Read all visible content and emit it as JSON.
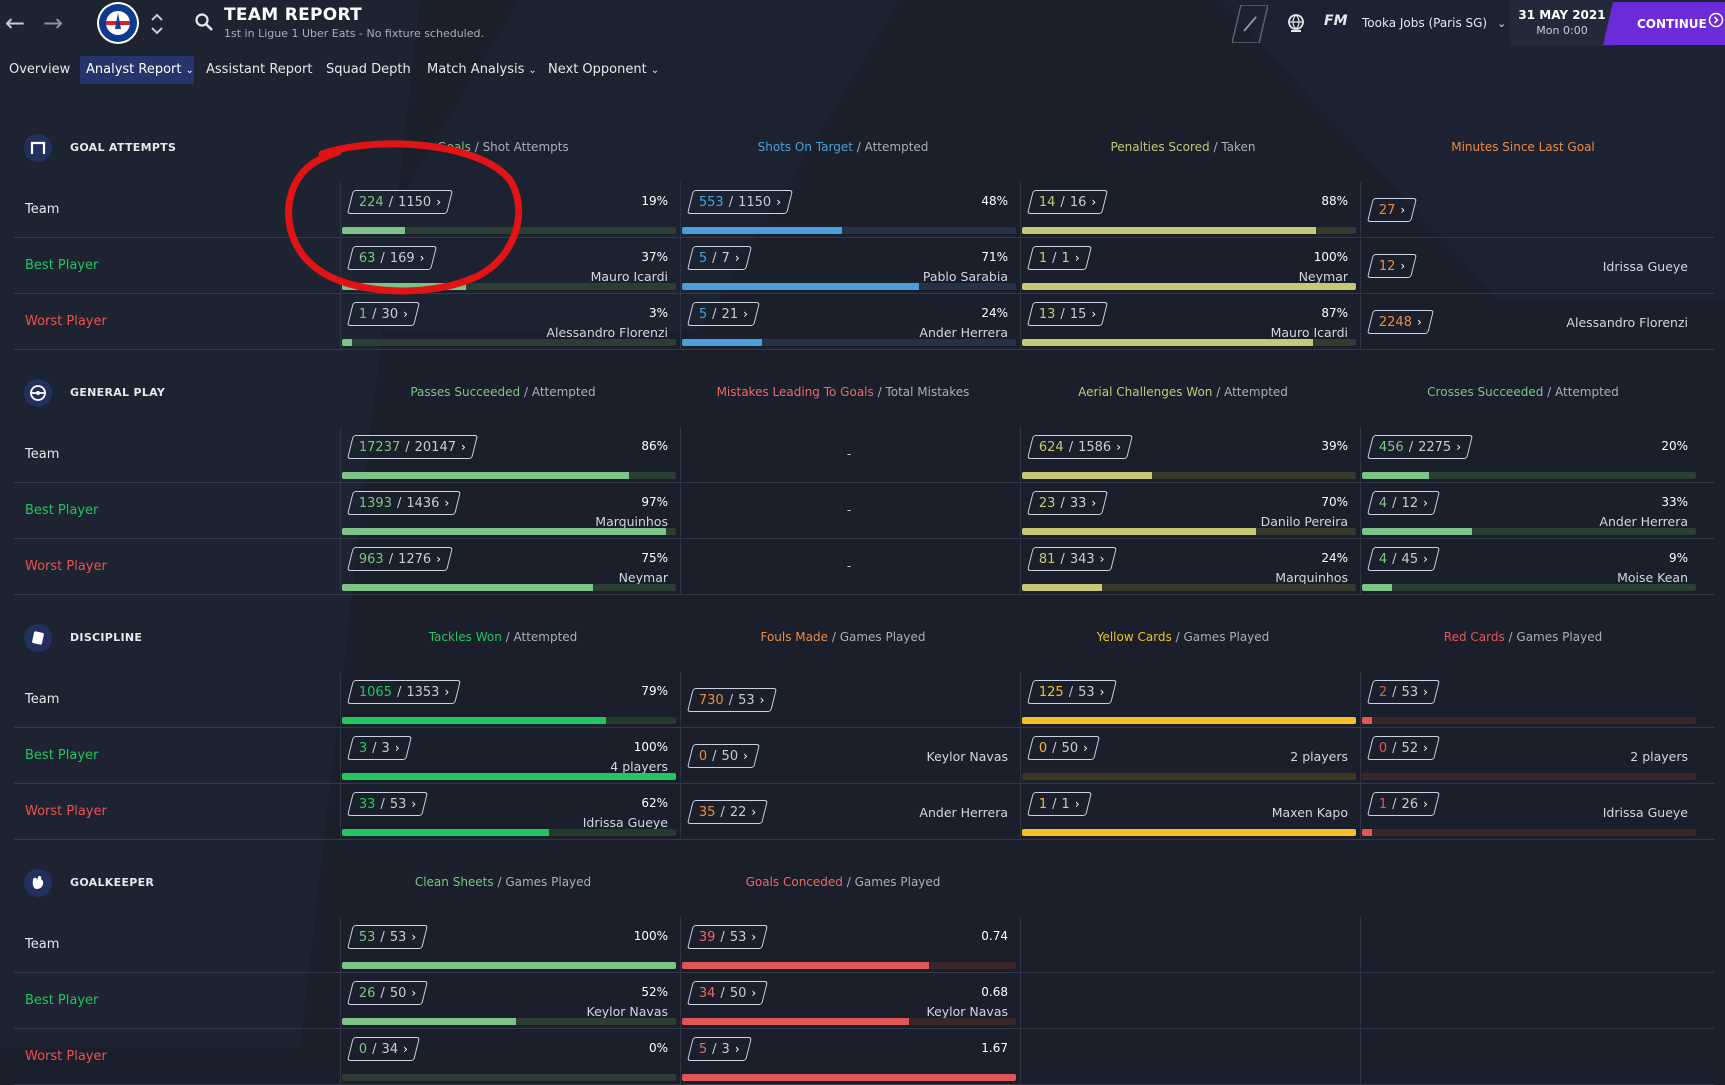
{
  "colors": {
    "green": "#7dc387",
    "blue": "#4a9fd8",
    "olive": "#c6c875",
    "orange": "#e88c46",
    "bright_green": "#22c55e",
    "yellow": "#f6c024",
    "red": "#e05757",
    "text_muted": "#a9aebb",
    "accent": "#6c2bd9"
  },
  "header": {
    "title": "TEAM REPORT",
    "subtitle": "1st in Ligue 1 Uber Eats - No fixture scheduled.",
    "back_icon": "back-arrow-icon",
    "forward_icon": "forward-arrow-icon",
    "crest_text": "PARIS",
    "fm_logo": "FM",
    "manager": "Tooka Jobs (Paris SG)",
    "date": "31 MAY 2021",
    "time": "Mon 0:00",
    "continue_label": "CONTINUE"
  },
  "tabs": [
    {
      "label": "Overview",
      "dropdown": false,
      "active": false
    },
    {
      "label": "Analyst Report",
      "dropdown": true,
      "active": true
    },
    {
      "label": "Assistant Report",
      "dropdown": false,
      "active": false
    },
    {
      "label": "Squad Depth",
      "dropdown": false,
      "active": false
    },
    {
      "label": "Match Analysis",
      "dropdown": true,
      "active": false
    },
    {
      "label": "Next Opponent",
      "dropdown": true,
      "active": false
    }
  ],
  "row_labels": [
    "Team",
    "Best Player",
    "Worst Player"
  ],
  "sections": [
    {
      "title": "GOAL ATTEMPTS",
      "icon": "goal-icon",
      "columns": [
        {
          "key": "Goals",
          "rest": "Shot Attempts",
          "color": "#7dc387",
          "bar": "#7dc387",
          "track": "#2c3e33",
          "rows": [
            {
              "num": "224",
              "den": "1150",
              "pct": "19%",
              "player": "",
              "fill": 0.19
            },
            {
              "num": "63",
              "den": "169",
              "pct": "37%",
              "player": "Mauro Icardi",
              "fill": 0.37
            },
            {
              "num": "1",
              "den": "30",
              "pct": "3%",
              "player": "Alessandro Florenzi",
              "fill": 0.03
            }
          ]
        },
        {
          "key": "Shots On Target",
          "rest": "Attempted",
          "color": "#4a9fd8",
          "bar": "#4a9fd8",
          "track": "#233345",
          "rows": [
            {
              "num": "553",
              "den": "1150",
              "pct": "48%",
              "player": "",
              "fill": 0.48
            },
            {
              "num": "5",
              "den": "7",
              "pct": "71%",
              "player": "Pablo Sarabia",
              "fill": 0.71
            },
            {
              "num": "5",
              "den": "21",
              "pct": "24%",
              "player": "Ander Herrera",
              "fill": 0.24
            }
          ]
        },
        {
          "key": "Penalties Scored",
          "rest": "Taken",
          "color": "#c6c875",
          "bar": "#c6c875",
          "track": "#37392c",
          "rows": [
            {
              "num": "14",
              "den": "16",
              "pct": "88%",
              "player": "",
              "fill": 0.88
            },
            {
              "num": "1",
              "den": "1",
              "pct": "100%",
              "player": "Neymar",
              "fill": 1.0
            },
            {
              "num": "13",
              "den": "15",
              "pct": "87%",
              "player": "Mauro Icardi",
              "fill": 0.87
            }
          ]
        },
        {
          "key": "Minutes Since Last Goal",
          "rest": "",
          "color": "#e88c46",
          "single": true,
          "rows": [
            {
              "num": "27",
              "player": ""
            },
            {
              "num": "12",
              "player": "Idrissa Gueye"
            },
            {
              "num": "2248",
              "player": "Alessandro Florenzi"
            }
          ]
        }
      ]
    },
    {
      "title": "GENERAL PLAY",
      "icon": "pitch-icon",
      "columns": [
        {
          "key": "Passes Succeeded",
          "rest": "Attempted",
          "color": "#7dc387",
          "bar": "#7dc387",
          "track": "#2c3e33",
          "rows": [
            {
              "num": "17237",
              "den": "20147",
              "pct": "86%",
              "player": "",
              "fill": 0.86
            },
            {
              "num": "1393",
              "den": "1436",
              "pct": "97%",
              "player": "Marquinhos",
              "fill": 0.97
            },
            {
              "num": "963",
              "den": "1276",
              "pct": "75%",
              "player": "Neymar",
              "fill": 0.75
            }
          ]
        },
        {
          "key": "Mistakes Leading To Goals",
          "rest": "Total Mistakes",
          "color": "#e86a6a",
          "empty": true,
          "rows": [
            {
              "dash": "-"
            },
            {
              "dash": "-"
            },
            {
              "dash": "-"
            }
          ]
        },
        {
          "key": "Aerial Challenges Won",
          "rest": "Attempted",
          "color": "#c6c875",
          "bar": "#c6c875",
          "track": "#37392c",
          "rows": [
            {
              "num": "624",
              "den": "1586",
              "pct": "39%",
              "player": "",
              "fill": 0.39
            },
            {
              "num": "23",
              "den": "33",
              "pct": "70%",
              "player": "Danilo Pereira",
              "fill": 0.7
            },
            {
              "num": "81",
              "den": "343",
              "pct": "24%",
              "player": "Marquinhos",
              "fill": 0.24
            }
          ]
        },
        {
          "key": "Crosses Succeeded",
          "rest": "Attempted",
          "color": "#7dc387",
          "bar": "#7dc387",
          "track": "#2c3e33",
          "rows": [
            {
              "num": "456",
              "den": "2275",
              "pct": "20%",
              "player": "",
              "fill": 0.2
            },
            {
              "num": "4",
              "den": "12",
              "pct": "33%",
              "player": "Ander Herrera",
              "fill": 0.33
            },
            {
              "num": "4",
              "den": "45",
              "pct": "9%",
              "player": "Moise Kean",
              "fill": 0.09
            }
          ]
        }
      ]
    },
    {
      "title": "DISCIPLINE",
      "icon": "card-icon",
      "columns": [
        {
          "key": "Tackles Won",
          "rest": "Attempted",
          "color": "#22c55e",
          "bar": "#22c55e",
          "track": "#233a2c",
          "rows": [
            {
              "num": "1065",
              "den": "1353",
              "pct": "79%",
              "player": "",
              "fill": 0.79
            },
            {
              "num": "3",
              "den": "3",
              "pct": "100%",
              "player": "4 players",
              "fill": 1.0
            },
            {
              "num": "33",
              "den": "53",
              "pct": "62%",
              "player": "Idrissa Gueye",
              "fill": 0.62
            }
          ]
        },
        {
          "key": "Fouls Made",
          "rest": "Games Played",
          "color": "#e88c46",
          "nobar": true,
          "rows": [
            {
              "num": "730",
              "den": "53",
              "pct": "",
              "player": ""
            },
            {
              "num": "0",
              "den": "50",
              "pct": "",
              "player": "Keylor Navas"
            },
            {
              "num": "35",
              "den": "22",
              "pct": "",
              "player": "Ander Herrera"
            }
          ]
        },
        {
          "key": "Yellow Cards",
          "rest": "Games Played",
          "color": "#f6c024",
          "bar": "#f6c024",
          "track": "#3a3622",
          "rows": [
            {
              "num": "125",
              "den": "53",
              "pct": "",
              "player": "",
              "fill": 1.0
            },
            {
              "num": "0",
              "den": "50",
              "pct": "",
              "player": "2 players",
              "fill": 0.0
            },
            {
              "num": "1",
              "den": "1",
              "pct": "",
              "player": "Maxen Kapo",
              "fill": 1.0
            }
          ]
        },
        {
          "key": "Red Cards",
          "rest": "Games Played",
          "color": "#e05757",
          "bar": "#e05757",
          "track": "#3a2528",
          "rows": [
            {
              "num": "2",
              "den": "53",
              "pct": "",
              "player": "",
              "fill": 0.03
            },
            {
              "num": "0",
              "den": "52",
              "pct": "",
              "player": "2 players",
              "fill": 0.0
            },
            {
              "num": "1",
              "den": "26",
              "pct": "",
              "player": "Idrissa Gueye",
              "fill": 0.03
            }
          ]
        }
      ]
    },
    {
      "title": "GOALKEEPER",
      "icon": "glove-icon",
      "columns": [
        {
          "key": "Clean Sheets",
          "rest": "Games Played",
          "color": "#7dc387",
          "bar": "#7dc387",
          "track": "#2c3e33",
          "rows": [
            {
              "num": "53",
              "den": "53",
              "pct": "100%",
              "player": "",
              "fill": 1.0
            },
            {
              "num": "26",
              "den": "50",
              "pct": "52%",
              "player": "Keylor Navas",
              "fill": 0.52
            },
            {
              "num": "0",
              "den": "34",
              "pct": "0%",
              "player": "",
              "fill": 0.0
            }
          ]
        },
        {
          "key": "Goals Conceded",
          "rest": "Games Played",
          "color": "#e86a6a",
          "bar": "#e05757",
          "track": "#3a2528",
          "rows": [
            {
              "num": "39",
              "den": "53",
              "pct": "0.74",
              "player": "",
              "fill": 0.74
            },
            {
              "num": "34",
              "den": "50",
              "pct": "0.68",
              "player": "Keylor Navas",
              "fill": 0.68
            },
            {
              "num": "5",
              "den": "3",
              "pct": "1.67",
              "player": "",
              "fill": 1.0
            }
          ]
        },
        {
          "blank": true
        },
        {
          "blank": true
        }
      ]
    }
  ]
}
